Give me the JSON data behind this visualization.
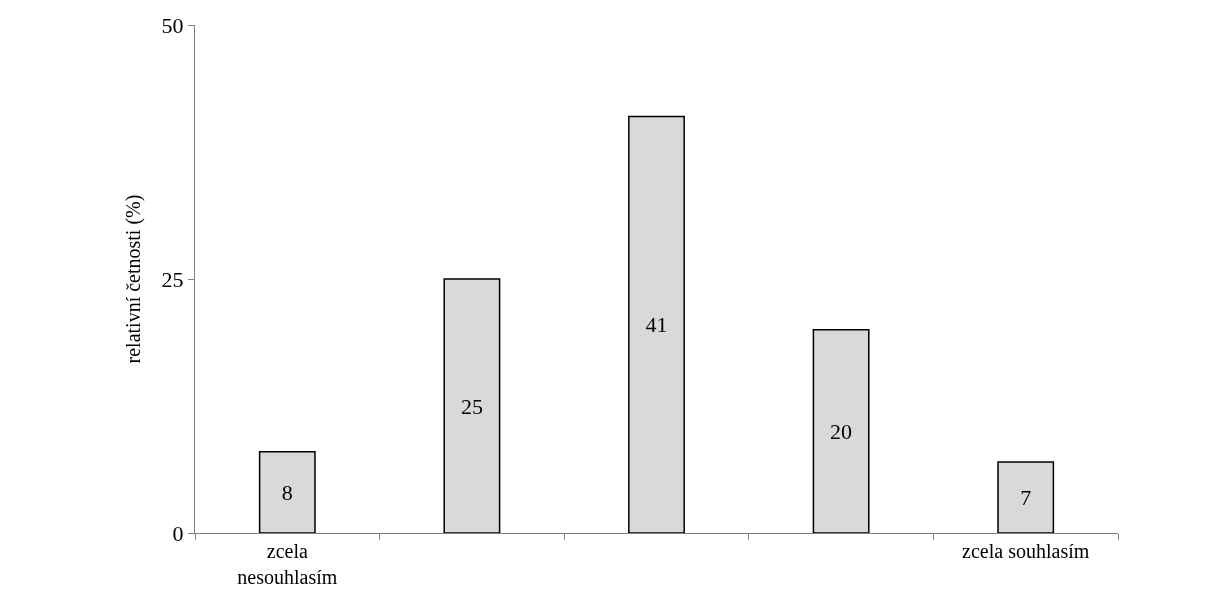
{
  "chart_data": {
    "type": "bar",
    "ylabel": "relativní četnosti (%)",
    "categories": [
      "zcela nesouhlasím",
      null,
      null,
      null,
      "zcela souhlasím"
    ],
    "values": [
      8,
      25,
      41,
      20,
      7
    ],
    "color": "#d9d9d9",
    "ylim": [
      0,
      50
    ],
    "yticks": [
      0,
      25,
      50
    ],
    "legend": false,
    "data_labels": true
  }
}
